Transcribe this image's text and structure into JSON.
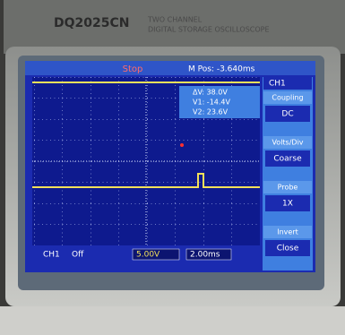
{
  "device": {
    "model": "DQ2025CN",
    "description": [
      "TWO CHANNEL",
      "DIGITAL STORAGE OSCILLOSCOPE"
    ]
  },
  "status": {
    "state": "Stop",
    "position": "M Pos: -3.640ms"
  },
  "measurements": [
    "ΔV: 38.0V",
    "V1: -14.4V",
    "V2: 23.6V"
  ],
  "menu": {
    "title": "CH1",
    "items": [
      {
        "label": "Coupling",
        "value": "DC"
      },
      {
        "label": "Volts/Div",
        "value": "Coarse"
      },
      {
        "label": "Probe",
        "value": "1X"
      },
      {
        "label": "Invert",
        "value": "Close"
      }
    ]
  },
  "footer": {
    "channel": "CH1",
    "state": "Off",
    "scale": "5.00V",
    "timebase": "2.00ms"
  }
}
